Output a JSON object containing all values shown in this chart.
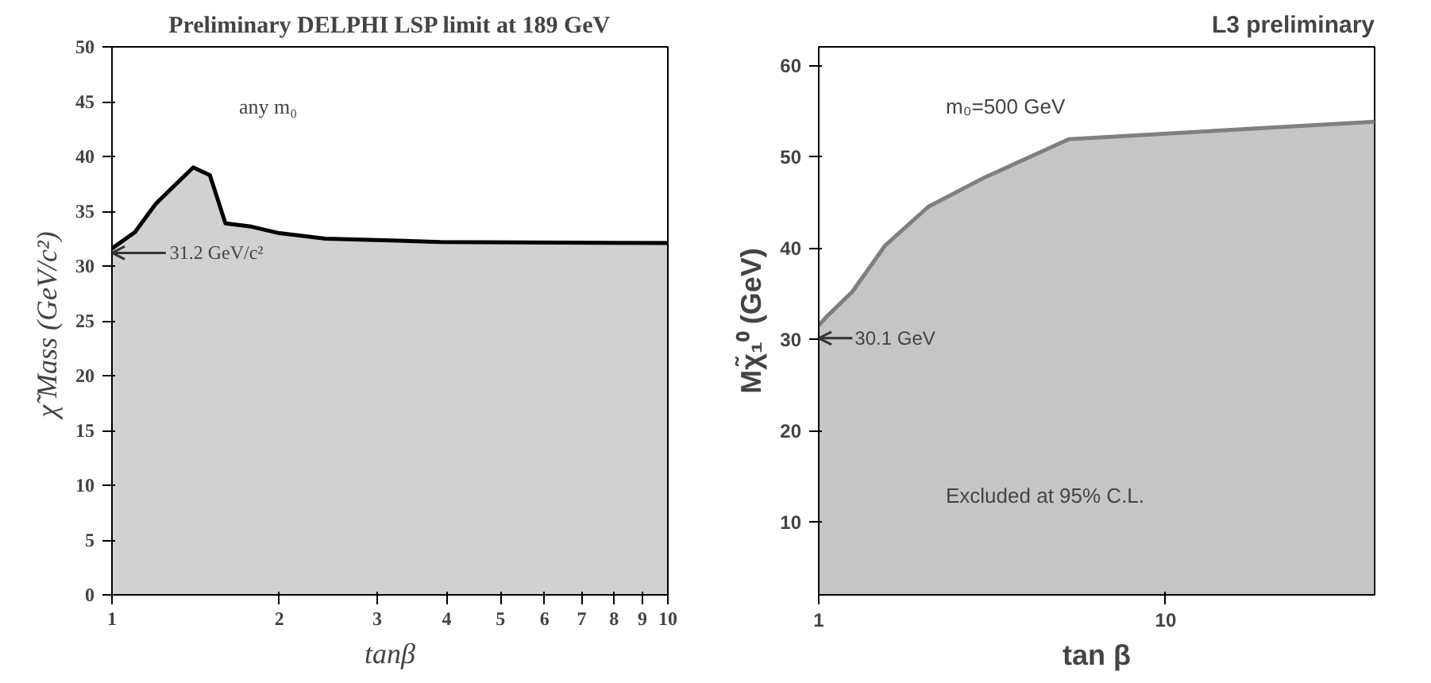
{
  "chart_data": [
    {
      "type": "area",
      "title": "Preliminary DELPHI LSP limit at 189 GeV",
      "xlabel": "tanβ",
      "ylabel": "χ̃  Mass (GeV/c²)",
      "log": "x",
      "x": [
        1,
        1.1,
        1.2,
        1.4,
        1.5,
        1.6,
        1.78,
        2.0,
        2.42,
        3.9,
        10
      ],
      "series": [
        {
          "color": "#000000",
          "values": [
            31.6,
            33.1,
            35.7,
            39.0,
            38.3,
            33.9,
            33.6,
            33.0,
            32.5,
            32.2,
            32.1
          ]
        }
      ],
      "xlim": [
        1,
        10
      ],
      "xticks": [
        1,
        2,
        3,
        4,
        5,
        6,
        7,
        8,
        9,
        10
      ],
      "ylim": [
        0,
        50
      ],
      "yticks": [
        0,
        5,
        10,
        15,
        20,
        25,
        30,
        35,
        40,
        45,
        50
      ],
      "grid": false,
      "annotations": [
        "any m₀",
        {
          "text": "31.2 GeV/c²",
          "x": 1,
          "y": 31.2
        }
      ]
    },
    {
      "type": "area",
      "title": "L3 preliminary",
      "xlabel": "tan β",
      "ylabel": "Mχ̃₁⁰ (GeV)",
      "log": "x",
      "x": [
        1,
        1.05,
        1.25,
        1.55,
        2.07,
        2.97,
        5.26,
        40
      ],
      "series": [
        {
          "color": "#7f7f7f",
          "values": [
            31.5,
            32.4,
            35.2,
            40.2,
            44.5,
            47.6,
            51.9,
            53.8
          ]
        }
      ],
      "xlim": [
        1,
        40
      ],
      "xticks": [
        1,
        10
      ],
      "ylim": [
        2,
        62
      ],
      "yticks": [
        10,
        20,
        30,
        40,
        50,
        60
      ],
      "grid": false,
      "annotations": [
        "m₀=500 GeV",
        "Excluded at 95% C.L.",
        {
          "text": "30.1 GeV",
          "x": 1,
          "y": 30.1
        }
      ]
    }
  ]
}
